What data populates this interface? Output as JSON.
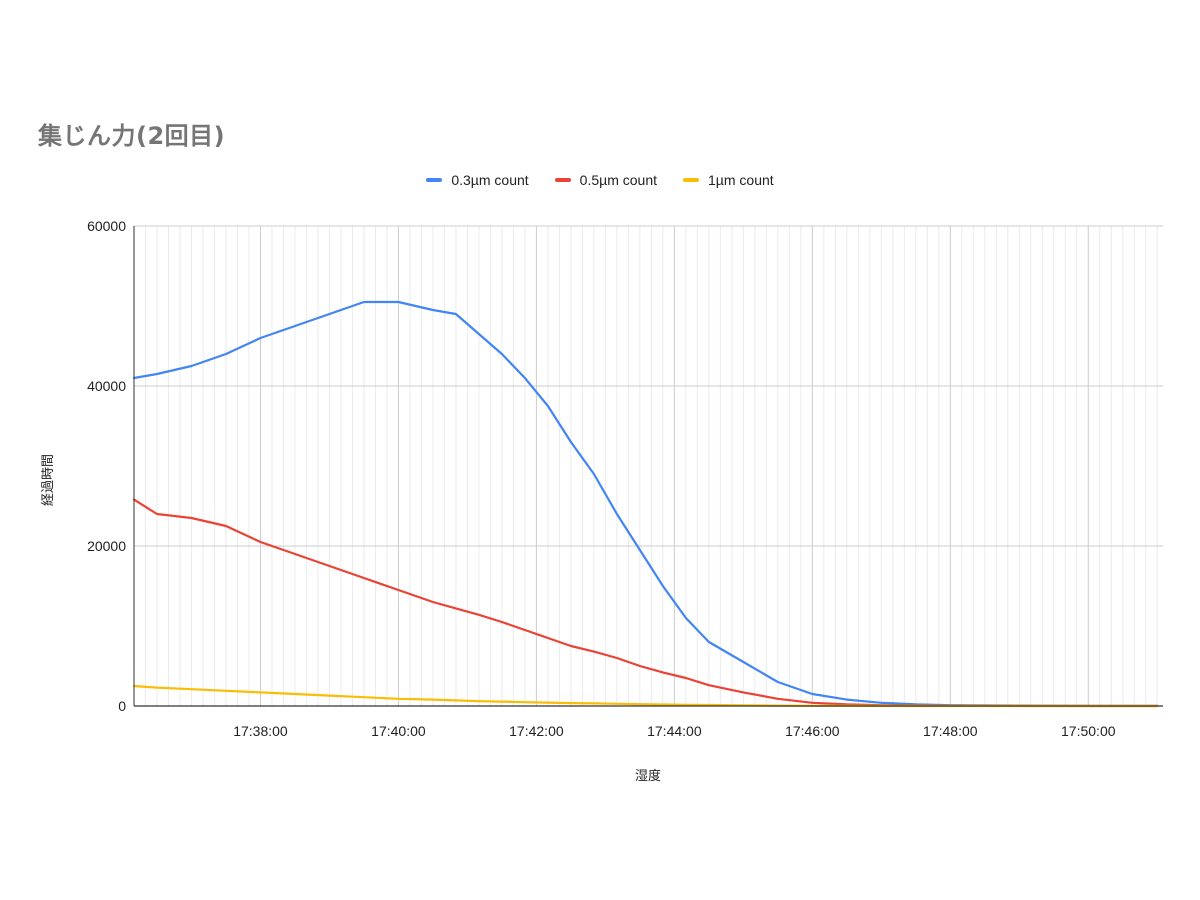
{
  "chart_data": {
    "type": "line",
    "title": "集じん力(2回目)",
    "xlabel": "湿度",
    "ylabel": "経過時間",
    "x_range": [
      "17:36:10",
      "17:51:05"
    ],
    "ylim": [
      0,
      60000
    ],
    "y_ticks": [
      "0",
      "20000",
      "40000",
      "60000"
    ],
    "x_ticks": [
      "17:38:00",
      "17:40:00",
      "17:42:00",
      "17:44:00",
      "17:46:00",
      "17:48:00",
      "17:50:00"
    ],
    "grid": true,
    "legend_position": "top",
    "x": [
      "17:36:10",
      "17:36:30",
      "17:37:00",
      "17:37:30",
      "17:38:00",
      "17:38:30",
      "17:39:00",
      "17:39:30",
      "17:40:00",
      "17:40:30",
      "17:40:50",
      "17:41:10",
      "17:41:30",
      "17:41:50",
      "17:42:10",
      "17:42:30",
      "17:42:50",
      "17:43:10",
      "17:43:30",
      "17:43:50",
      "17:44:10",
      "17:44:30",
      "17:45:00",
      "17:45:30",
      "17:46:00",
      "17:46:30",
      "17:47:00",
      "17:47:30",
      "17:48:00",
      "17:49:00",
      "17:50:00",
      "17:51:00"
    ],
    "series": [
      {
        "name": "0.3µm count",
        "color": "#4285f4",
        "values": [
          41000,
          41500,
          42500,
          44000,
          46000,
          47500,
          49000,
          50500,
          50500,
          49500,
          49000,
          46500,
          44000,
          41000,
          37500,
          33000,
          29000,
          24000,
          19500,
          15000,
          11000,
          8000,
          5500,
          3000,
          1500,
          800,
          400,
          200,
          100,
          50,
          20,
          10
        ]
      },
      {
        "name": "0.5µm count",
        "color": "#ea4335",
        "values": [
          25800,
          24000,
          23500,
          22500,
          20500,
          19000,
          17500,
          16000,
          14500,
          13000,
          12200,
          11400,
          10500,
          9500,
          8500,
          7500,
          6800,
          6000,
          5000,
          4200,
          3500,
          2600,
          1700,
          900,
          400,
          200,
          100,
          50,
          20,
          10,
          5,
          0
        ]
      },
      {
        "name": "1µm count",
        "color": "#fbbc04",
        "values": [
          2500,
          2300,
          2100,
          1900,
          1700,
          1500,
          1300,
          1100,
          900,
          800,
          700,
          600,
          550,
          480,
          420,
          360,
          320,
          280,
          230,
          190,
          150,
          120,
          80,
          50,
          30,
          20,
          10,
          5,
          2,
          1,
          0,
          0
        ]
      }
    ]
  }
}
